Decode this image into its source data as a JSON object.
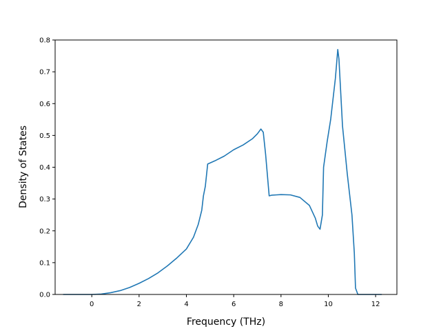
{
  "chart_data": {
    "type": "line",
    "title": "",
    "xlabel": "Frequency (THz)",
    "ylabel": "Density of States",
    "xlim": [
      -1.55,
      12.9
    ],
    "ylim": [
      0.0,
      0.8
    ],
    "xticks": [
      0,
      2,
      4,
      6,
      8,
      10,
      12
    ],
    "yticks": [
      0.0,
      0.1,
      0.2,
      0.3,
      0.4,
      0.5,
      0.6,
      0.7,
      0.8
    ],
    "xtick_labels": [
      "0",
      "2",
      "4",
      "6",
      "8",
      "10",
      "12"
    ],
    "ytick_labels": [
      "0.0",
      "0.1",
      "0.2",
      "0.3",
      "0.4",
      "0.5",
      "0.6",
      "0.7",
      "0.8"
    ],
    "grid": false,
    "legend": "none",
    "series_color": "#1f77b4",
    "series": [
      {
        "x": [
          -1.2,
          -0.8,
          -0.4,
          0.0,
          0.4,
          0.8,
          1.2,
          1.6,
          2.0,
          2.4,
          2.8,
          3.2,
          3.6,
          4.0,
          4.3,
          4.5,
          4.65,
          4.72,
          4.8,
          4.9,
          5.2,
          5.6,
          6.0,
          6.4,
          6.8,
          7.0,
          7.15,
          7.25,
          7.35,
          7.5,
          7.6,
          7.8,
          8.0,
          8.4,
          8.8,
          9.2,
          9.45,
          9.55,
          9.65,
          9.75,
          9.8,
          9.95,
          10.1,
          10.3,
          10.4,
          10.45,
          10.6,
          10.8,
          11.0,
          11.1,
          11.15,
          11.25,
          11.5,
          11.8,
          12.1,
          12.25
        ],
        "y": [
          0.0,
          0.0,
          0.0,
          0.0,
          0.0013,
          0.0055,
          0.012,
          0.022,
          0.035,
          0.05,
          0.068,
          0.09,
          0.115,
          0.143,
          0.18,
          0.22,
          0.265,
          0.31,
          0.34,
          0.41,
          0.42,
          0.435,
          0.455,
          0.47,
          0.49,
          0.505,
          0.52,
          0.51,
          0.44,
          0.31,
          0.312,
          0.313,
          0.314,
          0.313,
          0.305,
          0.28,
          0.24,
          0.215,
          0.205,
          0.25,
          0.4,
          0.48,
          0.55,
          0.68,
          0.77,
          0.74,
          0.53,
          0.38,
          0.25,
          0.13,
          0.02,
          0.0,
          0.0,
          0.0,
          0.0,
          0.0
        ]
      }
    ]
  }
}
